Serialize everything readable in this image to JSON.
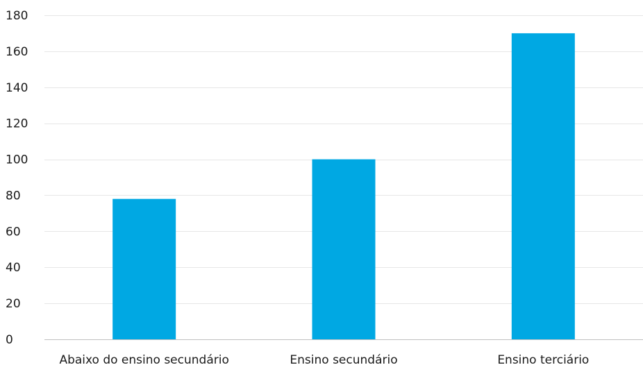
{
  "chart_data": {
    "type": "bar",
    "title": "",
    "xlabel": "",
    "ylabel": "",
    "categories": [
      "Abaixo do ensino secundário",
      "Ensino secundário",
      "Ensino terciário"
    ],
    "values": [
      78,
      100,
      170
    ],
    "ylim": [
      0,
      180
    ],
    "yticks": [
      0,
      20,
      40,
      60,
      80,
      100,
      120,
      140,
      160,
      180
    ],
    "grid": true,
    "legend": "none",
    "colors": {
      "bar": "#00a8e3",
      "grid": "#e6e6e6",
      "axis": "#bfbfbf",
      "text": "#1a1a1a"
    }
  }
}
